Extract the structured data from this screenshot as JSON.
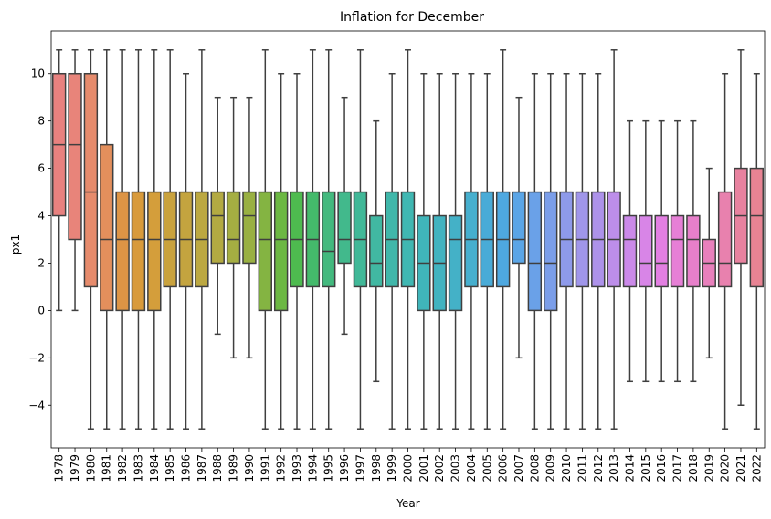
{
  "chart_data": {
    "type": "box",
    "title": "Inflation for December",
    "xlabel": "Year",
    "ylabel": "px1",
    "ylim": [
      -5.8,
      11.8
    ],
    "yticks": [
      -4,
      -2,
      0,
      2,
      4,
      6,
      8,
      10
    ],
    "ytick_labels": [
      "−4",
      "−2",
      "0",
      "2",
      "4",
      "6",
      "8",
      "10"
    ],
    "categories": [
      "1978",
      "1979",
      "1980",
      "1981",
      "1982",
      "1983",
      "1984",
      "1985",
      "1986",
      "1987",
      "1988",
      "1989",
      "1990",
      "1991",
      "1992",
      "1993",
      "1994",
      "1995",
      "1996",
      "1997",
      "1998",
      "1999",
      "2000",
      "2001",
      "2002",
      "2003",
      "2004",
      "2005",
      "2006",
      "2007",
      "2008",
      "2009",
      "2010",
      "2011",
      "2012",
      "2013",
      "2014",
      "2015",
      "2016",
      "2017",
      "2018",
      "2019",
      "2020",
      "2021",
      "2022"
    ],
    "boxes": [
      {
        "whislo": 0,
        "q1": 4,
        "med": 7,
        "q3": 10,
        "whishi": 11,
        "color": "#e8817f"
      },
      {
        "whislo": 0,
        "q1": 3,
        "med": 7,
        "q3": 10,
        "whishi": 11,
        "color": "#e8847a"
      },
      {
        "whislo": -5,
        "q1": 1,
        "med": 5,
        "q3": 10,
        "whishi": 11,
        "color": "#e68b6c"
      },
      {
        "whislo": -5,
        "q1": 0,
        "med": 3,
        "q3": 7,
        "whishi": 11,
        "color": "#e38f5c"
      },
      {
        "whislo": -5,
        "q1": 0,
        "med": 3,
        "q3": 5,
        "whishi": 11,
        "color": "#dd9445"
      },
      {
        "whislo": -5,
        "q1": 0,
        "med": 3,
        "q3": 5,
        "whishi": 11,
        "color": "#d89a3b"
      },
      {
        "whislo": -5,
        "q1": 0,
        "med": 3,
        "q3": 5,
        "whishi": 11,
        "color": "#d49e3b"
      },
      {
        "whislo": -5,
        "q1": 1,
        "med": 3,
        "q3": 5,
        "whishi": 11,
        "color": "#c9a23d"
      },
      {
        "whislo": -5,
        "q1": 1,
        "med": 3,
        "q3": 5,
        "whishi": 10,
        "color": "#c4a43f"
      },
      {
        "whislo": -5,
        "q1": 1,
        "med": 3,
        "q3": 5,
        "whishi": 11,
        "color": "#bca841"
      },
      {
        "whislo": -1,
        "q1": 2,
        "med": 4,
        "q3": 5,
        "whishi": 9,
        "color": "#b3aa42"
      },
      {
        "whislo": -2,
        "q1": 2,
        "med": 3,
        "q3": 5,
        "whishi": 9,
        "color": "#a5ae42"
      },
      {
        "whislo": -2,
        "q1": 2,
        "med": 4,
        "q3": 5,
        "whishi": 9,
        "color": "#99b042"
      },
      {
        "whislo": -5,
        "q1": 0,
        "med": 3,
        "q3": 5,
        "whishi": 11,
        "color": "#84b442"
      },
      {
        "whislo": -5,
        "q1": 0,
        "med": 3,
        "q3": 5,
        "whishi": 10,
        "color": "#6cb843"
      },
      {
        "whislo": -5,
        "q1": 1,
        "med": 3,
        "q3": 5,
        "whishi": 10,
        "color": "#4ebb4f"
      },
      {
        "whislo": -5,
        "q1": 1,
        "med": 3,
        "q3": 5,
        "whishi": 11,
        "color": "#44ba6b"
      },
      {
        "whislo": -5,
        "q1": 1,
        "med": 2.5,
        "q3": 5,
        "whishi": 11,
        "color": "#43b97e"
      },
      {
        "whislo": -1,
        "q1": 2,
        "med": 3,
        "q3": 5,
        "whishi": 9,
        "color": "#42b98c"
      },
      {
        "whislo": -5,
        "q1": 1,
        "med": 3,
        "q3": 5,
        "whishi": 11,
        "color": "#41b898"
      },
      {
        "whislo": -3,
        "q1": 1,
        "med": 2,
        "q3": 4,
        "whishi": 8,
        "color": "#41b8a2"
      },
      {
        "whislo": -5,
        "q1": 1,
        "med": 3,
        "q3": 5,
        "whishi": 10,
        "color": "#40b7aa"
      },
      {
        "whislo": -5,
        "q1": 1,
        "med": 3,
        "q3": 5,
        "whishi": 11,
        "color": "#3fb7b2"
      },
      {
        "whislo": -5,
        "q1": 0,
        "med": 2,
        "q3": 4,
        "whishi": 10,
        "color": "#40b5ba"
      },
      {
        "whislo": -5,
        "q1": 0,
        "med": 2,
        "q3": 4,
        "whishi": 10,
        "color": "#42b3c0"
      },
      {
        "whislo": -5,
        "q1": 0,
        "med": 3,
        "q3": 4,
        "whishi": 10,
        "color": "#44b1c7"
      },
      {
        "whislo": -5,
        "q1": 1,
        "med": 3,
        "q3": 5,
        "whishi": 10,
        "color": "#46afce"
      },
      {
        "whislo": -5,
        "q1": 1,
        "med": 3,
        "q3": 5,
        "whishi": 10,
        "color": "#49abd7"
      },
      {
        "whislo": -5,
        "q1": 1,
        "med": 3,
        "q3": 5,
        "whishi": 11,
        "color": "#4ea8e0"
      },
      {
        "whislo": -2,
        "q1": 2,
        "med": 3,
        "q3": 5,
        "whishi": 9,
        "color": "#5aa5e6"
      },
      {
        "whislo": -5,
        "q1": 0,
        "med": 2,
        "q3": 5,
        "whishi": 10,
        "color": "#6aa1e8"
      },
      {
        "whislo": -5,
        "q1": 0,
        "med": 2,
        "q3": 5,
        "whishi": 10,
        "color": "#7b9ee9"
      },
      {
        "whislo": -5,
        "q1": 1,
        "med": 3,
        "q3": 5,
        "whishi": 10,
        "color": "#8e9aea"
      },
      {
        "whislo": -5,
        "q1": 1,
        "med": 3,
        "q3": 5,
        "whishi": 10,
        "color": "#a096ea"
      },
      {
        "whislo": -5,
        "q1": 1,
        "med": 3,
        "q3": 5,
        "whishi": 10,
        "color": "#ad92ea"
      },
      {
        "whislo": -5,
        "q1": 1,
        "med": 3,
        "q3": 5,
        "whishi": 11,
        "color": "#bd8eea"
      },
      {
        "whislo": -3,
        "q1": 1,
        "med": 3,
        "q3": 4,
        "whishi": 8,
        "color": "#cb89e9"
      },
      {
        "whislo": -3,
        "q1": 1,
        "med": 2,
        "q3": 4,
        "whishi": 8,
        "color": "#d885e7"
      },
      {
        "whislo": -3,
        "q1": 1,
        "med": 2,
        "q3": 4,
        "whishi": 8,
        "color": "#e37fe2"
      },
      {
        "whislo": -3,
        "q1": 1,
        "med": 3,
        "q3": 4,
        "whishi": 8,
        "color": "#e67fd6"
      },
      {
        "whislo": -3,
        "q1": 1,
        "med": 3,
        "q3": 4,
        "whishi": 8,
        "color": "#e77fca"
      },
      {
        "whislo": -2,
        "q1": 1,
        "med": 2,
        "q3": 3,
        "whishi": 6,
        "color": "#e880bc"
      },
      {
        "whislo": -5,
        "q1": 1,
        "med": 2,
        "q3": 5,
        "whishi": 10,
        "color": "#e881ae"
      },
      {
        "whislo": -4,
        "q1": 2,
        "med": 4,
        "q3": 6,
        "whishi": 11,
        "color": "#e8829f"
      },
      {
        "whislo": -5,
        "q1": 1,
        "med": 4,
        "q3": 6,
        "whishi": 10,
        "color": "#e88393"
      }
    ]
  }
}
